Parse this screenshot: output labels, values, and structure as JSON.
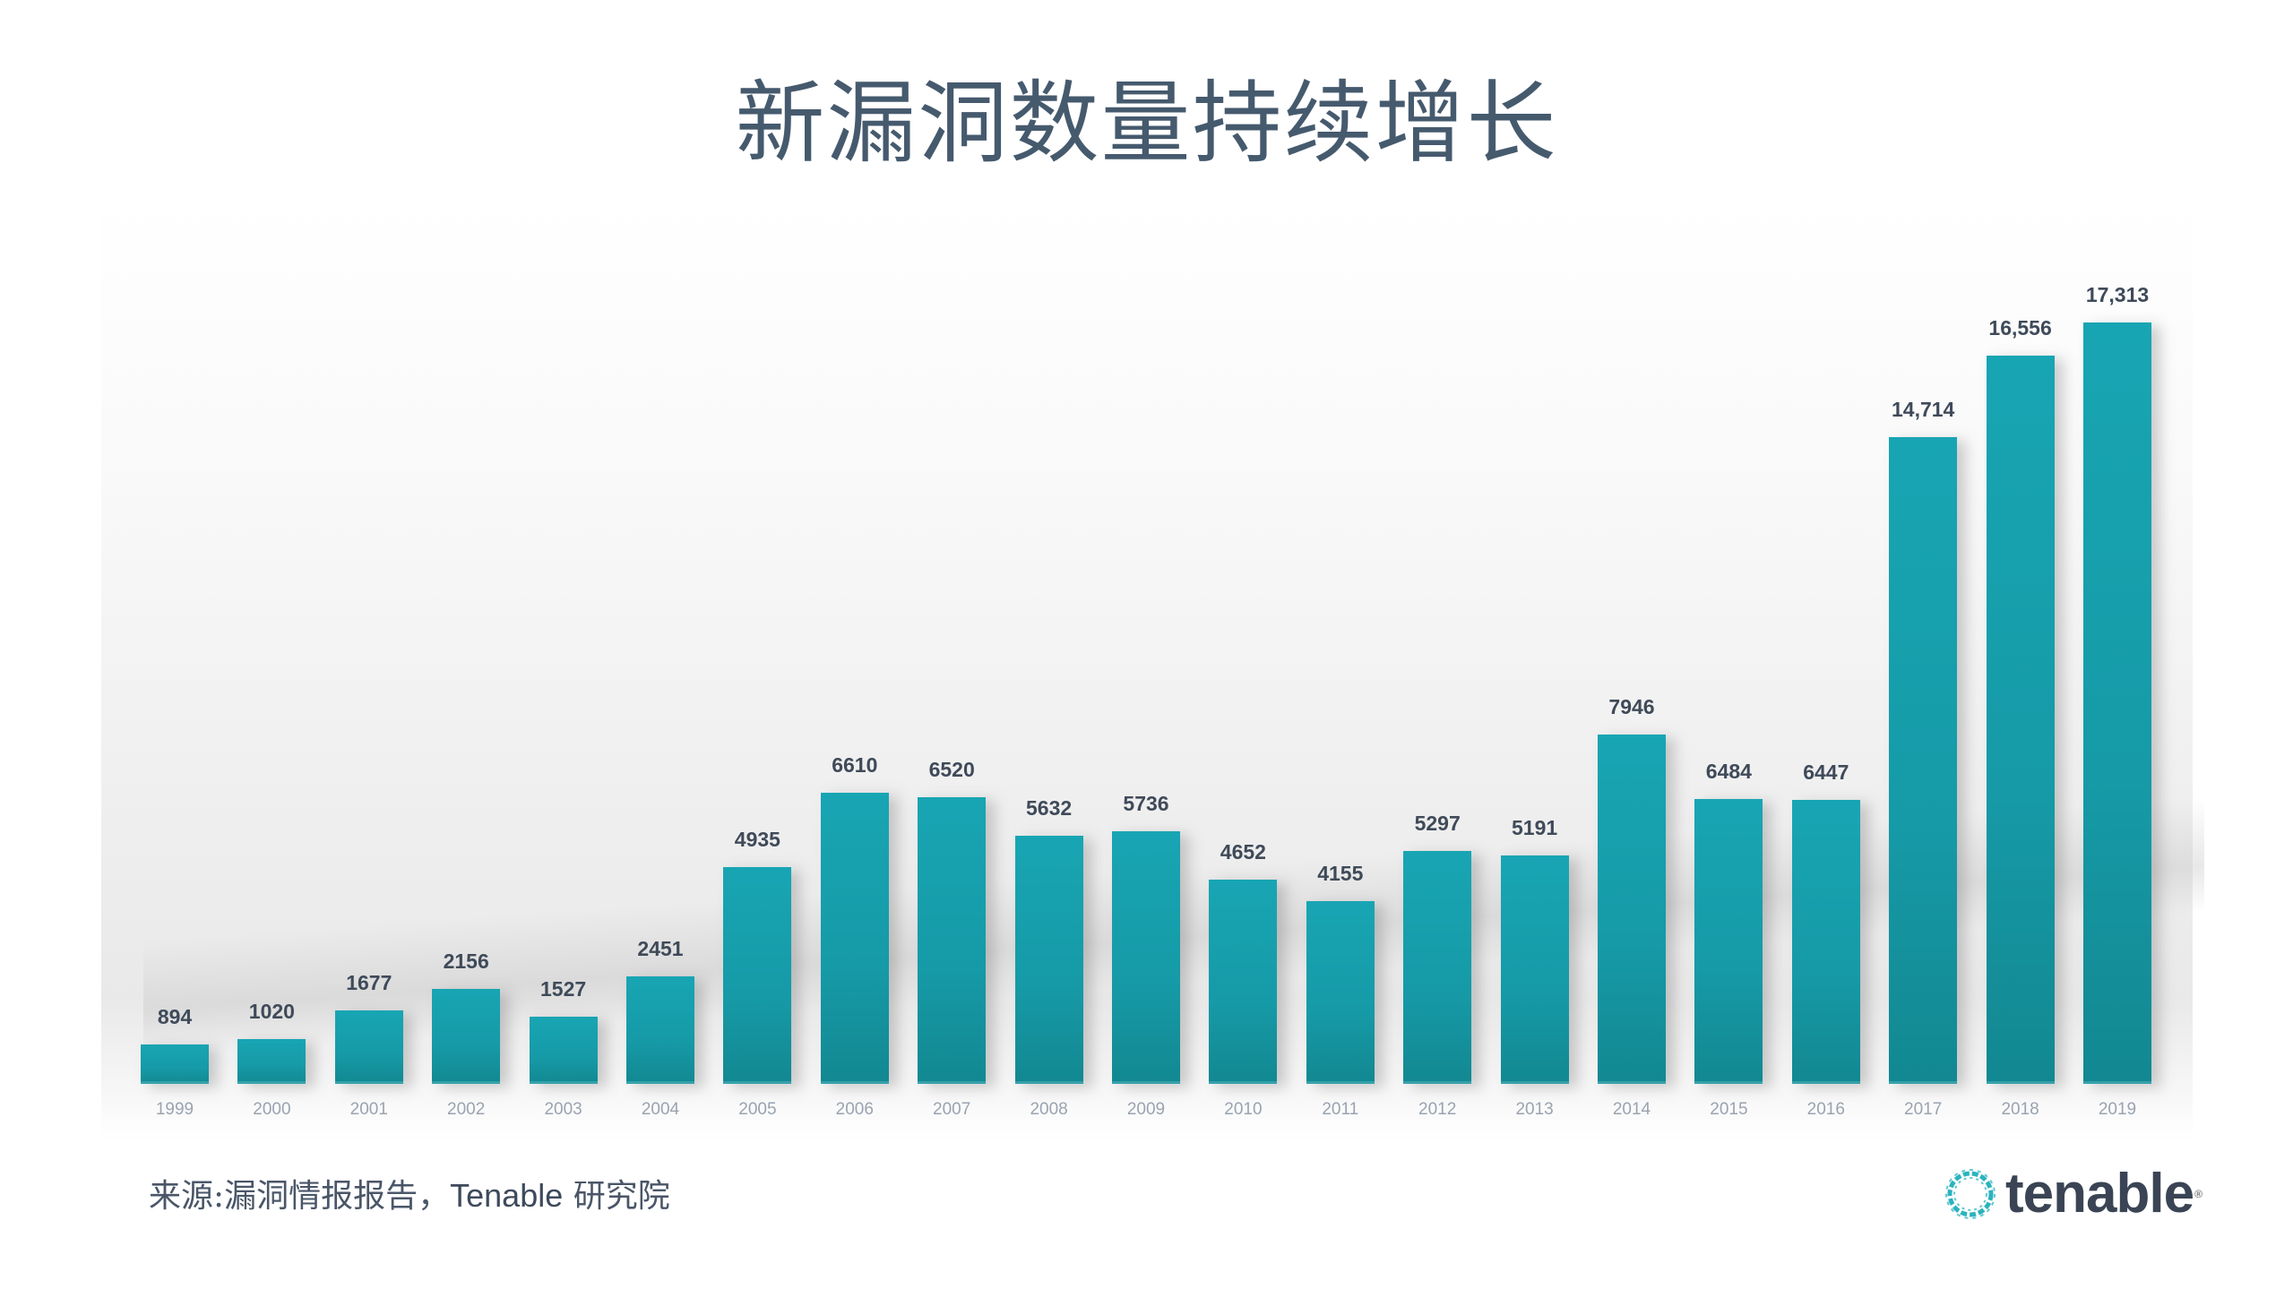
{
  "title": "新漏洞数量持续增长",
  "source": {
    "prefix": "来源:漏洞情报报告，",
    "brand": "Tenable",
    "suffix": " 研究院"
  },
  "logo": {
    "icon": "tenable-ring-icon",
    "text": "tenable",
    "reg": "®"
  },
  "colors": {
    "bar": "#17a2b0",
    "bar_bottom": "#128891",
    "title": "#465a6e",
    "value_label": "#3f4a59",
    "year_label": "#9aa3b0"
  },
  "chart_data": {
    "type": "bar",
    "title": "新漏洞数量持续增长",
    "xlabel": "",
    "ylabel": "",
    "categories": [
      "1999",
      "2000",
      "2001",
      "2002",
      "2003",
      "2004",
      "2005",
      "2006",
      "2007",
      "2008",
      "2009",
      "2010",
      "2011",
      "2012",
      "2013",
      "2014",
      "2015",
      "2016",
      "2017",
      "2018",
      "2019"
    ],
    "values": [
      894,
      1020,
      1677,
      2156,
      1527,
      2451,
      4935,
      6610,
      6520,
      5632,
      5736,
      4652,
      4155,
      5297,
      5191,
      7946,
      6484,
      6447,
      14714,
      16556,
      17313
    ],
    "value_labels": [
      "894",
      "1020",
      "1677",
      "2156",
      "1527",
      "2451",
      "4935",
      "6610",
      "6520",
      "5632",
      "5736",
      "4652",
      "4155",
      "5297",
      "5191",
      "7946",
      "6484",
      "6447",
      "14,714",
      "16,556",
      "17,313"
    ],
    "ylim": [
      0,
      17313
    ],
    "grid": false,
    "legend": null,
    "source": "来源:漏洞情报报告，Tenable 研究院"
  }
}
